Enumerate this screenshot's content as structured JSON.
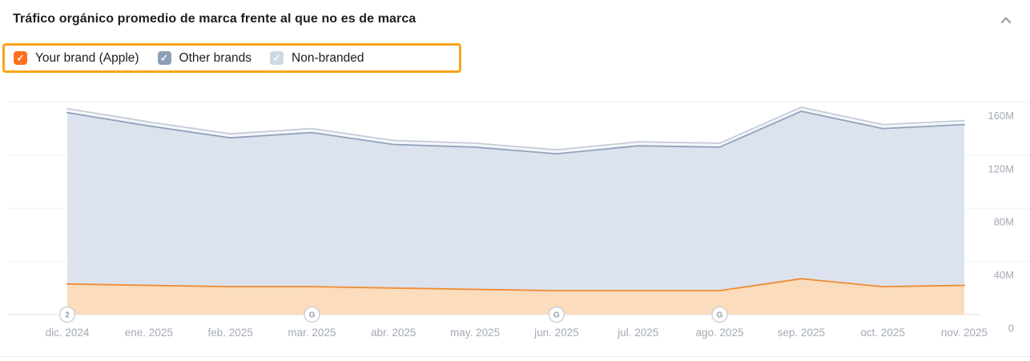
{
  "header": {
    "title": "Tráfico orgánico promedio de marca frente al que no es de marca",
    "collapse_icon": "chevron-up"
  },
  "legend": {
    "highlight_color": "#f9a51a",
    "items": [
      {
        "label": "Your brand (Apple)",
        "checked": true,
        "color": "#ff7122"
      },
      {
        "label": "Other brands",
        "checked": true,
        "color": "#8ba0b5"
      },
      {
        "label": "Non-branded",
        "checked": true,
        "color": "#cdd8e1"
      }
    ]
  },
  "chart_data": {
    "type": "area",
    "title": "Tráfico orgánico promedio de marca frente al que no es de marca",
    "unit": "M",
    "grid": true,
    "legend_position": "top-left",
    "ylim": [
      0,
      172
    ],
    "categories": [
      "dic. 2024",
      "ene. 2025",
      "feb. 2025",
      "mar. 2025",
      "abr. 2025",
      "may. 2025",
      "jun. 2025",
      "jul. 2025",
      "ago. 2025",
      "sep. 2025",
      "oct. 2025",
      "nov. 2025"
    ],
    "y_ticks": [
      {
        "value": 160,
        "label": "160M"
      },
      {
        "value": 120,
        "label": "120M"
      },
      {
        "value": 80,
        "label": "80M"
      },
      {
        "value": 40,
        "label": "40M"
      },
      {
        "value": 0,
        "label": "0"
      }
    ],
    "series": [
      {
        "name": "Non-branded",
        "values": [
          155,
          145,
          136,
          140,
          131,
          129,
          124,
          130,
          129,
          156,
          143,
          146
        ],
        "line_color": "#c5cdd9",
        "fill_color": "#f4f6fa"
      },
      {
        "name": "Other brands",
        "values": [
          152,
          142,
          133,
          137,
          128,
          126,
          121,
          127,
          126,
          153,
          140,
          143
        ],
        "line_color": "#93a2bd",
        "fill_color": "#dde3ee"
      },
      {
        "name": "Your brand (Apple)",
        "values": [
          23,
          22,
          21,
          21,
          20,
          19,
          18,
          18,
          18,
          27,
          21,
          22
        ],
        "line_color": "#f08b33",
        "fill_color": "#fbdcbc"
      }
    ],
    "annotations": [
      {
        "index": 0,
        "label": "2"
      },
      {
        "index": 3,
        "label": "G"
      },
      {
        "index": 6,
        "label": "G"
      },
      {
        "index": 8,
        "label": "G"
      }
    ],
    "colors": {
      "grid": "#eff1f4",
      "axis": "#e0e2e6",
      "tick_text": "#a3aab4",
      "badge_border": "#cbd0d7",
      "badge_text": "#959ca6"
    }
  }
}
